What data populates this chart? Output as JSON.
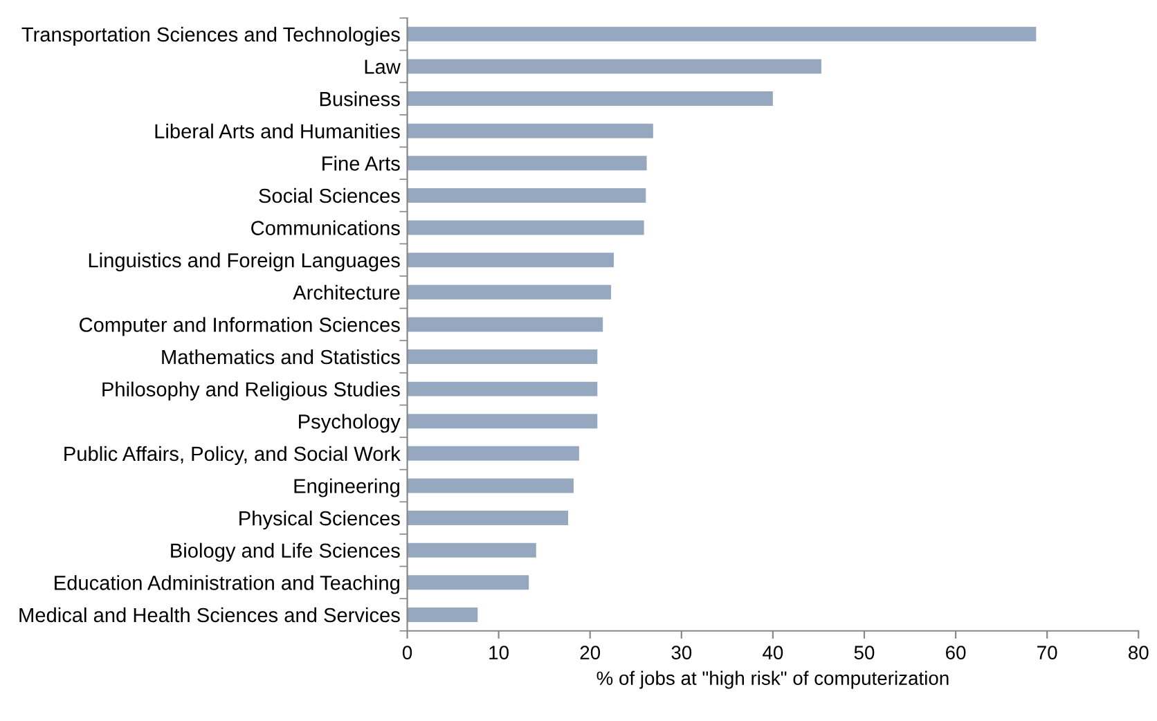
{
  "chart_data": {
    "type": "bar",
    "orientation": "horizontal",
    "xlabel": "% of jobs at \"high risk\" of computerization",
    "categories": [
      "Transportation Sciences and Technologies",
      "Law",
      "Business",
      "Liberal Arts and Humanities",
      "Fine Arts",
      "Social Sciences",
      "Communications",
      "Linguistics and Foreign Languages",
      "Architecture",
      "Computer and Information Sciences",
      "Mathematics and Statistics",
      "Philosophy and Religious Studies",
      "Psychology",
      "Public Affairs, Policy, and Social Work",
      "Engineering",
      "Physical Sciences",
      "Biology and Life Sciences",
      "Education Administration and Teaching",
      "Medical and Health Sciences and Services"
    ],
    "values": [
      68.8,
      45.3,
      40.0,
      26.9,
      26.2,
      26.1,
      25.9,
      22.6,
      22.3,
      21.4,
      20.8,
      20.8,
      20.8,
      18.8,
      18.2,
      17.6,
      14.1,
      13.3,
      7.7
    ],
    "color": "#95a8c0",
    "xlim": [
      0,
      80
    ],
    "xticks": [
      0,
      10,
      20,
      30,
      40,
      50,
      60,
      70,
      80
    ],
    "grid": false
  }
}
